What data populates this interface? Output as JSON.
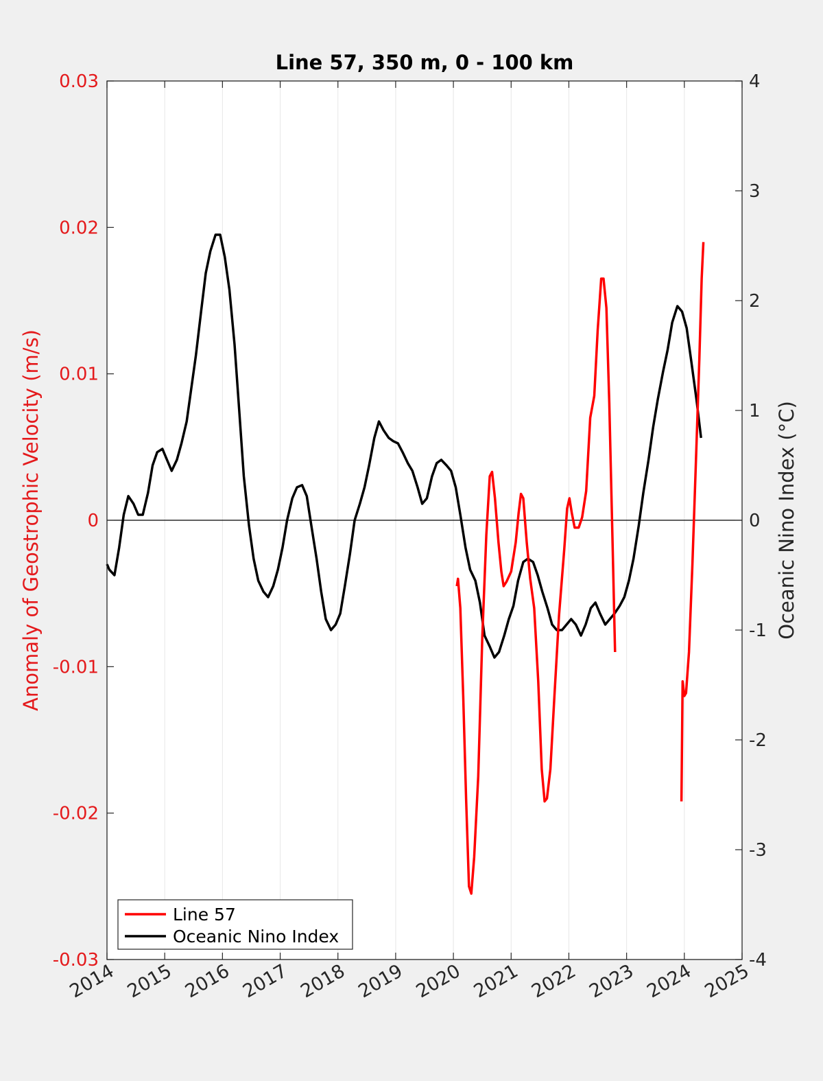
{
  "chart_data": {
    "type": "line",
    "title": "Line 57, 350 m, 0 - 100 km",
    "xlabel": "",
    "ylabel_left": "Anomaly of Geostrophic Velocity (m/s)",
    "ylabel_right": "Oceanic Nino Index (°C)",
    "xlim": [
      2014,
      2025
    ],
    "ylim_left": [
      -0.03,
      0.03
    ],
    "ylim_right": [
      -4,
      4
    ],
    "x_ticks": [
      "2014",
      "2015",
      "2016",
      "2017",
      "2018",
      "2019",
      "2020",
      "2021",
      "2022",
      "2023",
      "2024",
      "2025"
    ],
    "y_left_ticks": [
      "-0.03",
      "-0.02",
      "-0.01",
      "0",
      "0.01",
      "0.02",
      "0.03"
    ],
    "y_right_ticks": [
      "-4",
      "-3",
      "-2",
      "-1",
      "0",
      "1",
      "2",
      "3",
      "4"
    ],
    "grid": "vertical",
    "legend_position": "bottom-left",
    "colors": {
      "left_axis": "#e41a1c",
      "line57": "#ff0000",
      "oni": "#000000",
      "axis": "#262626"
    },
    "series": [
      {
        "name": "Line 57",
        "axis": "left",
        "color": "#ff0000",
        "segments": [
          [
            [
              2020.06,
              -0.0045
            ],
            [
              2020.08,
              -0.004
            ],
            [
              2020.12,
              -0.006
            ],
            [
              2020.17,
              -0.012
            ],
            [
              2020.22,
              -0.019
            ],
            [
              2020.27,
              -0.025
            ],
            [
              2020.31,
              -0.0255
            ],
            [
              2020.36,
              -0.023
            ],
            [
              2020.43,
              -0.0175
            ],
            [
              2020.5,
              -0.008
            ],
            [
              2020.57,
              -0.001
            ],
            [
              2020.63,
              0.003
            ],
            [
              2020.67,
              0.0033
            ],
            [
              2020.72,
              0.0015
            ],
            [
              2020.78,
              -0.0015
            ],
            [
              2020.83,
              -0.0035
            ],
            [
              2020.87,
              -0.0045
            ],
            [
              2020.92,
              -0.0042
            ],
            [
              2021.0,
              -0.0035
            ],
            [
              2021.08,
              -0.0015
            ],
            [
              2021.13,
              0.0005
            ],
            [
              2021.17,
              0.0018
            ],
            [
              2021.21,
              0.0015
            ],
            [
              2021.27,
              -0.0015
            ],
            [
              2021.33,
              -0.004
            ],
            [
              2021.4,
              -0.006
            ],
            [
              2021.47,
              -0.011
            ],
            [
              2021.53,
              -0.017
            ],
            [
              2021.58,
              -0.0192
            ],
            [
              2021.62,
              -0.019
            ],
            [
              2021.68,
              -0.017
            ],
            [
              2021.75,
              -0.012
            ],
            [
              2021.83,
              -0.0065
            ],
            [
              2021.92,
              -0.002
            ],
            [
              2021.97,
              0.0008
            ],
            [
              2022.01,
              0.0015
            ],
            [
              2022.05,
              0.0005
            ],
            [
              2022.1,
              -0.0005
            ],
            [
              2022.17,
              -0.0005
            ],
            [
              2022.23,
              0.0002
            ],
            [
              2022.3,
              0.002
            ],
            [
              2022.37,
              0.007
            ],
            [
              2022.44,
              0.0085
            ],
            [
              2022.5,
              0.013
            ],
            [
              2022.56,
              0.0165
            ],
            [
              2022.6,
              0.0165
            ],
            [
              2022.65,
              0.0145
            ],
            [
              2022.7,
              0.008
            ],
            [
              2022.76,
              -0.002
            ],
            [
              2022.8,
              -0.009
            ]
          ],
          [
            [
              2023.95,
              -0.0192
            ],
            [
              2023.97,
              -0.011
            ],
            [
              2024.0,
              -0.012
            ],
            [
              2024.03,
              -0.0118
            ],
            [
              2024.08,
              -0.009
            ],
            [
              2024.14,
              -0.003
            ],
            [
              2024.2,
              0.004
            ],
            [
              2024.26,
              0.011
            ],
            [
              2024.3,
              0.0165
            ],
            [
              2024.33,
              0.019
            ]
          ]
        ]
      },
      {
        "name": "Oceanic Nino Index",
        "axis": "right",
        "color": "#000000",
        "x": [
          2014.0,
          2014.04,
          2014.13,
          2014.21,
          2014.29,
          2014.37,
          2014.46,
          2014.54,
          2014.62,
          2014.71,
          2014.79,
          2014.87,
          2014.96,
          2015.04,
          2015.12,
          2015.21,
          2015.29,
          2015.38,
          2015.46,
          2015.54,
          2015.63,
          2015.71,
          2015.79,
          2015.88,
          2015.96,
          2016.04,
          2016.12,
          2016.21,
          2016.29,
          2016.37,
          2016.46,
          2016.54,
          2016.62,
          2016.71,
          2016.79,
          2016.88,
          2016.96,
          2017.04,
          2017.12,
          2017.21,
          2017.29,
          2017.38,
          2017.46,
          2017.54,
          2017.63,
          2017.71,
          2017.79,
          2017.88,
          2017.96,
          2018.04,
          2018.12,
          2018.21,
          2018.29,
          2018.38,
          2018.46,
          2018.54,
          2018.63,
          2018.71,
          2018.79,
          2018.88,
          2018.96,
          2019.04,
          2019.12,
          2019.21,
          2019.29,
          2019.38,
          2019.46,
          2019.54,
          2019.63,
          2019.71,
          2019.79,
          2019.88,
          2019.96,
          2020.04,
          2020.12,
          2020.21,
          2020.29,
          2020.38,
          2020.46,
          2020.54,
          2020.63,
          2020.71,
          2020.79,
          2020.88,
          2020.96,
          2021.04,
          2021.12,
          2021.21,
          2021.29,
          2021.38,
          2021.46,
          2021.54,
          2021.63,
          2021.71,
          2021.79,
          2021.88,
          2021.96,
          2022.04,
          2022.12,
          2022.21,
          2022.29,
          2022.38,
          2022.46,
          2022.54,
          2022.63,
          2022.71,
          2022.79,
          2022.88,
          2022.96,
          2023.04,
          2023.12,
          2023.21,
          2023.29,
          2023.38,
          2023.46,
          2023.54,
          2023.63,
          2023.71,
          2023.79,
          2023.88,
          2023.96,
          2024.04,
          2024.12,
          2024.21,
          2024.29
        ],
        "y": [
          -0.4,
          -0.45,
          -0.5,
          -0.25,
          0.05,
          0.22,
          0.15,
          0.05,
          0.05,
          0.25,
          0.5,
          0.62,
          0.65,
          0.55,
          0.45,
          0.55,
          0.7,
          0.9,
          1.2,
          1.5,
          1.9,
          2.25,
          2.45,
          2.6,
          2.6,
          2.4,
          2.1,
          1.6,
          1.0,
          0.4,
          -0.05,
          -0.35,
          -0.55,
          -0.65,
          -0.7,
          -0.6,
          -0.45,
          -0.25,
          0.0,
          0.2,
          0.3,
          0.32,
          0.22,
          -0.05,
          -0.35,
          -0.65,
          -0.9,
          -1.0,
          -0.95,
          -0.85,
          -0.6,
          -0.3,
          0.0,
          0.15,
          0.3,
          0.5,
          0.75,
          0.9,
          0.82,
          0.75,
          0.72,
          0.7,
          0.62,
          0.52,
          0.45,
          0.3,
          0.15,
          0.2,
          0.4,
          0.52,
          0.55,
          0.5,
          0.45,
          0.3,
          0.05,
          -0.25,
          -0.45,
          -0.55,
          -0.75,
          -1.05,
          -1.15,
          -1.25,
          -1.2,
          -1.05,
          -0.9,
          -0.78,
          -0.55,
          -0.38,
          -0.35,
          -0.38,
          -0.5,
          -0.65,
          -0.8,
          -0.95,
          -1.0,
          -1.0,
          -0.95,
          -0.9,
          -0.95,
          -1.05,
          -0.95,
          -0.8,
          -0.75,
          -0.85,
          -0.95,
          -0.9,
          -0.85,
          -0.78,
          -0.7,
          -0.55,
          -0.35,
          -0.05,
          0.25,
          0.55,
          0.85,
          1.1,
          1.35,
          1.55,
          1.8,
          1.95,
          1.9,
          1.75,
          1.45,
          1.1,
          0.75
        ]
      }
    ]
  }
}
